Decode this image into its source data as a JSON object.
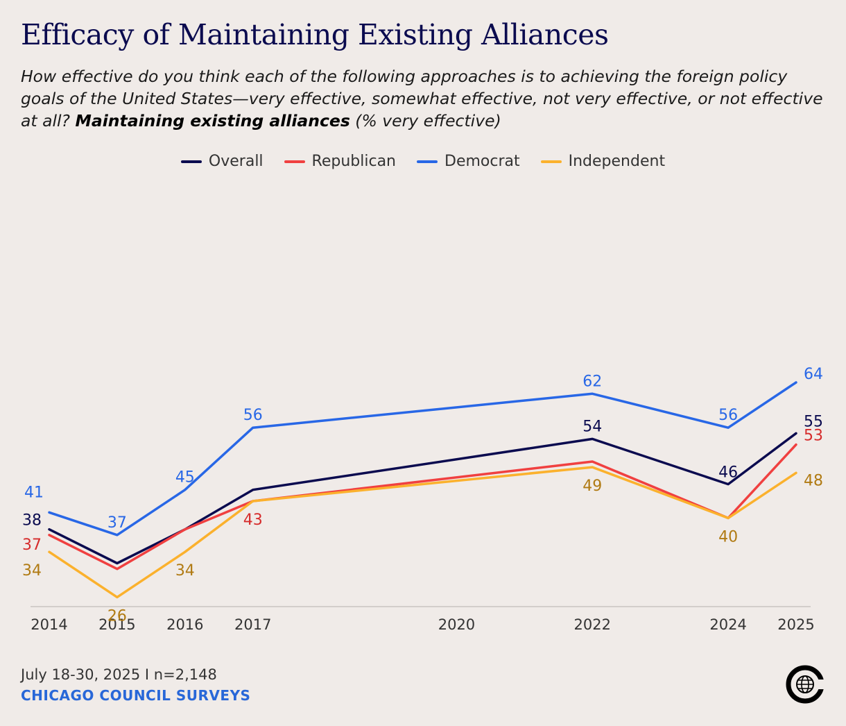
{
  "title": "Efficacy of Maintaining Existing Alliances",
  "subtitle": {
    "prefix": "How effective do you think each of the following approaches is to achieving the foreign policy goals of the United States—very effective, somewhat effective, not very effective, or not effective at all? ",
    "emphasis": "Maintaining existing alliances",
    "suffix": " (% very effective)"
  },
  "footer": {
    "date": "July 18-30, 2025 I n=2,148",
    "source": "CHICAGO COUNCIL SURVEYS"
  },
  "logo_icon": "chicago-council-globe-icon",
  "chart_data": {
    "type": "line",
    "title": "Efficacy of Maintaining Existing Alliances",
    "xlabel": "",
    "ylabel": "% very effective",
    "x": [
      2014,
      2015,
      2016,
      2017,
      2022,
      2024,
      2025
    ],
    "x_ticks": [
      "2014",
      "2015",
      "2016",
      "2017",
      "2020",
      "2022",
      "2024",
      "2025"
    ],
    "xlim": [
      2014,
      2025
    ],
    "ylim": [
      0,
      100
    ],
    "grid": false,
    "legend_position": "top-center",
    "series": [
      {
        "name": "Overall",
        "color": "#0b0b4f",
        "label_color": "#0b0b4f",
        "values": [
          38,
          32,
          38,
          45,
          54,
          46,
          55
        ]
      },
      {
        "name": "Republican",
        "color": "#f04040",
        "label_color": "#d62b2b",
        "values": [
          37,
          31,
          38,
          43,
          50,
          40,
          53
        ]
      },
      {
        "name": "Democrat",
        "color": "#2867e6",
        "label_color": "#2867e6",
        "values": [
          41,
          37,
          45,
          56,
          62,
          56,
          64
        ]
      },
      {
        "name": "Independent",
        "color": "#fbb12d",
        "label_color": "#b07a12",
        "values": [
          34,
          26,
          34,
          43,
          49,
          40,
          48
        ]
      }
    ],
    "data_labels": [
      {
        "series": "Overall",
        "x": 2014,
        "text": "38"
      },
      {
        "series": "Overall",
        "x": 2022,
        "text": "54"
      },
      {
        "series": "Overall",
        "x": 2024,
        "text": "46"
      },
      {
        "series": "Overall",
        "x": 2025,
        "text": "55"
      },
      {
        "series": "Republican",
        "x": 2014,
        "text": "37"
      },
      {
        "series": "Republican",
        "x": 2017,
        "text": "43"
      },
      {
        "series": "Republican",
        "x": 2025,
        "text": "53"
      },
      {
        "series": "Democrat",
        "x": 2014,
        "text": "41"
      },
      {
        "series": "Democrat",
        "x": 2015,
        "text": "37"
      },
      {
        "series": "Democrat",
        "x": 2016,
        "text": "45"
      },
      {
        "series": "Democrat",
        "x": 2017,
        "text": "56"
      },
      {
        "series": "Democrat",
        "x": 2022,
        "text": "62"
      },
      {
        "series": "Democrat",
        "x": 2024,
        "text": "56"
      },
      {
        "series": "Democrat",
        "x": 2025,
        "text": "64"
      },
      {
        "series": "Independent",
        "x": 2014,
        "text": "34"
      },
      {
        "series": "Independent",
        "x": 2015,
        "text": "26"
      },
      {
        "series": "Independent",
        "x": 2016,
        "text": "34"
      },
      {
        "series": "Independent",
        "x": 2022,
        "text": "49"
      },
      {
        "series": "Independent",
        "x": 2024,
        "text": "40"
      },
      {
        "series": "Independent",
        "x": 2025,
        "text": "48"
      }
    ]
  }
}
